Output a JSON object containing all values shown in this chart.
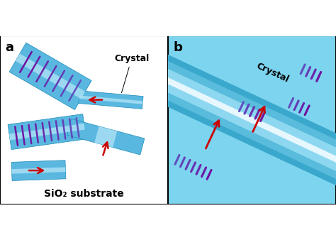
{
  "bg_left": "#ffffff",
  "bg_right": "#7dd4ee",
  "crystal_base": "#5ab8e0",
  "crystal_light": "#a8dff5",
  "crystal_dark": "#1a90c0",
  "crystal_edge": "#1a8ab8",
  "stripe_purple": "#7030a0",
  "stripe_blue": "#4060c0",
  "arrow_color": "#cc0000",
  "band_mid": "#4ab0d8",
  "band_dark": "#3090b8",
  "band_white": "#dff5ff",
  "band_bg": "#7dd4ee",
  "label_a": "a",
  "label_b": "b",
  "label_crystal": "Crystal",
  "label_substrate": "SiO₂ substrate"
}
